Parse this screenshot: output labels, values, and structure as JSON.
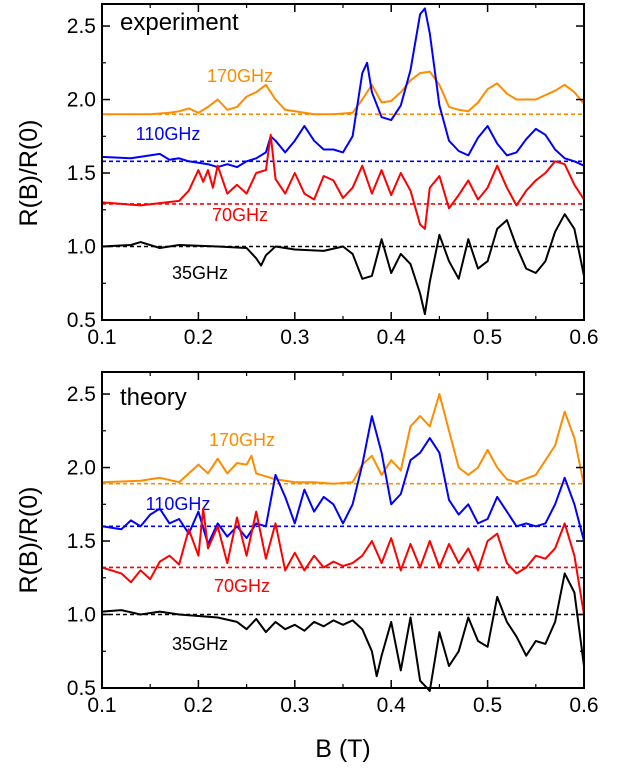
{
  "figure": {
    "xlabel": "B (T)"
  },
  "chart_data": [
    {
      "type": "line",
      "title": "experiment",
      "xlabel": "",
      "ylabel": "R(B)/R(0)",
      "xlim": [
        0.1,
        0.6
      ],
      "ylim": [
        0.5,
        2.65
      ],
      "xticks": [
        "0.1",
        "0.2",
        "0.3",
        "0.4",
        "0.5",
        "0.6"
      ],
      "yticks": [
        "0.5",
        "1.0",
        "1.5",
        "2.0",
        "2.5"
      ],
      "series": [
        {
          "name": "170GHz",
          "color": "#FF8C00",
          "baseline": 1.9,
          "x": [
            0.1,
            0.15,
            0.17,
            0.18,
            0.19,
            0.2,
            0.21,
            0.22,
            0.23,
            0.24,
            0.25,
            0.26,
            0.27,
            0.28,
            0.29,
            0.3,
            0.32,
            0.34,
            0.36,
            0.37,
            0.38,
            0.39,
            0.4,
            0.41,
            0.42,
            0.43,
            0.44,
            0.45,
            0.46,
            0.47,
            0.48,
            0.49,
            0.5,
            0.51,
            0.52,
            0.53,
            0.55,
            0.57,
            0.58,
            0.59,
            0.6
          ],
          "y": [
            1.9,
            1.9,
            1.91,
            1.92,
            1.94,
            1.91,
            1.95,
            2.0,
            1.93,
            1.95,
            2.02,
            2.05,
            2.1,
            2.0,
            1.93,
            1.92,
            1.9,
            1.9,
            1.91,
            2.0,
            2.1,
            1.98,
            1.99,
            2.05,
            2.13,
            2.18,
            2.19,
            2.1,
            1.95,
            1.93,
            1.92,
            1.98,
            2.07,
            2.11,
            2.04,
            2.0,
            2.0,
            2.06,
            2.1,
            2.05,
            1.97
          ]
        },
        {
          "name": "110GHz",
          "color": "#0000FF",
          "baseline": 1.58,
          "x": [
            0.1,
            0.13,
            0.16,
            0.17,
            0.18,
            0.19,
            0.2,
            0.21,
            0.22,
            0.23,
            0.24,
            0.25,
            0.26,
            0.27,
            0.275,
            0.28,
            0.29,
            0.3,
            0.31,
            0.32,
            0.33,
            0.34,
            0.35,
            0.36,
            0.37,
            0.375,
            0.38,
            0.39,
            0.4,
            0.41,
            0.42,
            0.43,
            0.435,
            0.44,
            0.45,
            0.46,
            0.47,
            0.48,
            0.49,
            0.5,
            0.51,
            0.52,
            0.53,
            0.54,
            0.55,
            0.56,
            0.57,
            0.58,
            0.59,
            0.6
          ],
          "y": [
            1.61,
            1.6,
            1.63,
            1.59,
            1.6,
            1.58,
            1.57,
            1.56,
            1.54,
            1.56,
            1.54,
            1.58,
            1.6,
            1.64,
            1.75,
            1.72,
            1.64,
            1.72,
            1.82,
            1.72,
            1.66,
            1.66,
            1.64,
            1.75,
            2.18,
            2.25,
            2.05,
            1.88,
            1.86,
            1.96,
            2.2,
            2.58,
            2.62,
            2.45,
            1.96,
            1.72,
            1.65,
            1.62,
            1.74,
            1.82,
            1.7,
            1.62,
            1.64,
            1.73,
            1.8,
            1.76,
            1.66,
            1.6,
            1.58,
            1.55
          ]
        },
        {
          "name": "70GHz",
          "color": "#FF0000",
          "baseline": 1.29,
          "x": [
            0.1,
            0.14,
            0.18,
            0.19,
            0.2,
            0.205,
            0.21,
            0.215,
            0.22,
            0.23,
            0.24,
            0.25,
            0.26,
            0.27,
            0.275,
            0.28,
            0.29,
            0.3,
            0.31,
            0.32,
            0.33,
            0.34,
            0.35,
            0.36,
            0.37,
            0.38,
            0.39,
            0.4,
            0.41,
            0.42,
            0.43,
            0.435,
            0.44,
            0.45,
            0.46,
            0.47,
            0.48,
            0.49,
            0.5,
            0.51,
            0.52,
            0.53,
            0.54,
            0.55,
            0.56,
            0.57,
            0.58,
            0.59,
            0.6
          ],
          "y": [
            1.3,
            1.28,
            1.31,
            1.38,
            1.52,
            1.44,
            1.52,
            1.4,
            1.55,
            1.36,
            1.42,
            1.36,
            1.5,
            1.52,
            1.76,
            1.46,
            1.36,
            1.5,
            1.36,
            1.32,
            1.48,
            1.45,
            1.33,
            1.4,
            1.55,
            1.36,
            1.52,
            1.35,
            1.5,
            1.38,
            1.15,
            1.12,
            1.4,
            1.48,
            1.26,
            1.35,
            1.45,
            1.32,
            1.4,
            1.55,
            1.4,
            1.28,
            1.38,
            1.45,
            1.5,
            1.58,
            1.56,
            1.42,
            1.32
          ]
        },
        {
          "name": "35GHz",
          "color": "#000000",
          "baseline": 1.0,
          "x": [
            0.1,
            0.13,
            0.14,
            0.16,
            0.18,
            0.22,
            0.25,
            0.26,
            0.265,
            0.27,
            0.28,
            0.3,
            0.33,
            0.35,
            0.36,
            0.37,
            0.38,
            0.39,
            0.4,
            0.41,
            0.42,
            0.43,
            0.435,
            0.44,
            0.45,
            0.46,
            0.47,
            0.48,
            0.49,
            0.5,
            0.51,
            0.52,
            0.53,
            0.54,
            0.55,
            0.56,
            0.57,
            0.58,
            0.59,
            0.6
          ],
          "y": [
            1.0,
            1.01,
            1.03,
            0.99,
            1.01,
            1.0,
            0.99,
            0.92,
            0.87,
            0.94,
            1.0,
            0.98,
            0.97,
            1.0,
            0.95,
            0.78,
            0.8,
            1.05,
            0.82,
            0.95,
            0.88,
            0.68,
            0.54,
            0.76,
            1.08,
            0.9,
            0.78,
            1.05,
            0.85,
            0.9,
            1.12,
            1.18,
            1.0,
            0.85,
            0.82,
            0.9,
            1.1,
            1.22,
            1.12,
            0.8
          ]
        }
      ]
    },
    {
      "type": "line",
      "title": "theory",
      "xlabel": "",
      "ylabel": "R(B)/R(0)",
      "xlim": [
        0.1,
        0.6
      ],
      "ylim": [
        0.5,
        2.65
      ],
      "xticks": [
        "0.1",
        "0.2",
        "0.3",
        "0.4",
        "0.5",
        "0.6"
      ],
      "yticks": [
        "0.5",
        "1.0",
        "1.5",
        "2.0",
        "2.5"
      ],
      "series": [
        {
          "name": "170GHz",
          "color": "#FF8C00",
          "baseline": 1.89,
          "x": [
            0.1,
            0.14,
            0.16,
            0.18,
            0.2,
            0.21,
            0.22,
            0.23,
            0.24,
            0.25,
            0.255,
            0.26,
            0.27,
            0.28,
            0.29,
            0.3,
            0.32,
            0.34,
            0.36,
            0.37,
            0.38,
            0.39,
            0.4,
            0.41,
            0.42,
            0.43,
            0.44,
            0.45,
            0.46,
            0.47,
            0.48,
            0.49,
            0.5,
            0.51,
            0.52,
            0.53,
            0.55,
            0.57,
            0.58,
            0.59,
            0.6
          ],
          "y": [
            1.9,
            1.91,
            1.93,
            1.9,
            2.02,
            1.96,
            2.06,
            1.96,
            2.03,
            2.02,
            2.08,
            1.96,
            1.94,
            1.92,
            1.91,
            1.9,
            1.9,
            1.89,
            1.9,
            2.02,
            2.08,
            1.95,
            2.05,
            1.98,
            2.28,
            2.35,
            2.28,
            2.5,
            2.25,
            2.0,
            1.95,
            2.0,
            2.12,
            2.0,
            1.92,
            1.9,
            1.95,
            2.15,
            2.38,
            2.2,
            1.88
          ]
        },
        {
          "name": "110GHz",
          "color": "#0000FF",
          "baseline": 1.6,
          "x": [
            0.1,
            0.12,
            0.13,
            0.14,
            0.15,
            0.16,
            0.17,
            0.18,
            0.19,
            0.2,
            0.21,
            0.22,
            0.23,
            0.24,
            0.25,
            0.26,
            0.27,
            0.28,
            0.29,
            0.3,
            0.31,
            0.32,
            0.33,
            0.34,
            0.35,
            0.36,
            0.37,
            0.38,
            0.39,
            0.4,
            0.41,
            0.42,
            0.43,
            0.44,
            0.45,
            0.46,
            0.47,
            0.48,
            0.49,
            0.5,
            0.51,
            0.52,
            0.53,
            0.54,
            0.55,
            0.56,
            0.57,
            0.58,
            0.59,
            0.6
          ],
          "y": [
            1.6,
            1.58,
            1.64,
            1.6,
            1.68,
            1.72,
            1.62,
            1.65,
            1.55,
            1.7,
            1.48,
            1.62,
            1.53,
            1.6,
            1.52,
            1.62,
            1.6,
            1.95,
            1.8,
            1.62,
            1.85,
            1.7,
            1.8,
            1.75,
            1.62,
            1.75,
            2.02,
            2.35,
            2.1,
            1.75,
            1.82,
            2.05,
            2.1,
            2.2,
            2.1,
            1.78,
            1.68,
            1.75,
            1.62,
            1.65,
            1.8,
            1.7,
            1.6,
            1.62,
            1.6,
            1.62,
            1.75,
            1.93,
            1.75,
            1.5
          ]
        },
        {
          "name": "70GHz",
          "color": "#FF0000",
          "baseline": 1.32,
          "x": [
            0.1,
            0.12,
            0.13,
            0.14,
            0.15,
            0.16,
            0.17,
            0.18,
            0.19,
            0.2,
            0.205,
            0.21,
            0.22,
            0.23,
            0.24,
            0.25,
            0.26,
            0.27,
            0.28,
            0.29,
            0.3,
            0.31,
            0.32,
            0.33,
            0.34,
            0.35,
            0.36,
            0.37,
            0.38,
            0.39,
            0.4,
            0.41,
            0.42,
            0.43,
            0.44,
            0.45,
            0.46,
            0.47,
            0.48,
            0.49,
            0.5,
            0.51,
            0.52,
            0.53,
            0.54,
            0.55,
            0.56,
            0.57,
            0.58,
            0.59,
            0.6
          ],
          "y": [
            1.32,
            1.28,
            1.22,
            1.3,
            1.24,
            1.36,
            1.4,
            1.34,
            1.58,
            1.4,
            1.72,
            1.45,
            1.6,
            1.35,
            1.66,
            1.4,
            1.7,
            1.38,
            1.62,
            1.3,
            1.42,
            1.3,
            1.4,
            1.32,
            1.36,
            1.33,
            1.35,
            1.4,
            1.5,
            1.35,
            1.52,
            1.3,
            1.48,
            1.32,
            1.5,
            1.32,
            1.48,
            1.35,
            1.45,
            1.3,
            1.5,
            1.55,
            1.35,
            1.28,
            1.32,
            1.4,
            1.38,
            1.45,
            1.62,
            1.4,
            1.0
          ]
        },
        {
          "name": "35GHz",
          "color": "#000000",
          "baseline": 1.0,
          "x": [
            0.1,
            0.12,
            0.14,
            0.16,
            0.18,
            0.22,
            0.24,
            0.25,
            0.26,
            0.27,
            0.28,
            0.29,
            0.3,
            0.31,
            0.32,
            0.33,
            0.34,
            0.35,
            0.36,
            0.37,
            0.38,
            0.385,
            0.39,
            0.4,
            0.41,
            0.42,
            0.43,
            0.44,
            0.45,
            0.46,
            0.47,
            0.48,
            0.49,
            0.5,
            0.51,
            0.52,
            0.53,
            0.54,
            0.55,
            0.56,
            0.57,
            0.58,
            0.59,
            0.6
          ],
          "y": [
            1.02,
            1.03,
            1.0,
            1.02,
            1.0,
            0.98,
            0.95,
            0.9,
            0.97,
            0.88,
            0.95,
            0.9,
            0.93,
            0.89,
            0.95,
            0.92,
            0.96,
            0.93,
            0.96,
            0.9,
            0.75,
            0.58,
            0.72,
            0.95,
            0.62,
            0.98,
            0.55,
            0.48,
            0.88,
            0.65,
            0.75,
            0.98,
            0.82,
            0.78,
            1.12,
            0.95,
            0.85,
            0.72,
            0.82,
            0.8,
            0.95,
            1.28,
            1.15,
            0.65
          ]
        }
      ]
    }
  ]
}
